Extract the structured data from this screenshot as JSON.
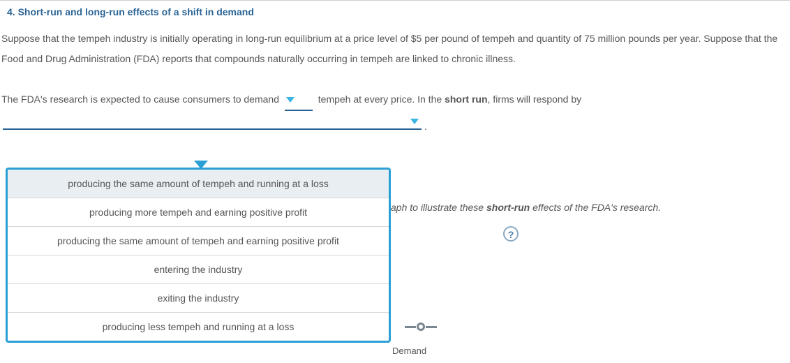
{
  "colors": {
    "heading": "#2a6496",
    "body_text": "#555555",
    "dropdown_border": "#2a9fd6",
    "dropdown_highlight_bg": "#e9eef2",
    "caret": "#3bb3e4",
    "blank_underline": "#2a6496",
    "help_border": "#8aa9c2",
    "help_text": "#4b7aa6",
    "legend_gray": "#7a8791",
    "rule": "#d0d0d0"
  },
  "heading": "4. Short-run and long-run effects of a shift in demand",
  "paragraph1": "Suppose that the tempeh industry is initially operating in long-run equilibrium at a price level of $5 per pound of tempeh and quantity of 75 million pounds per year. Suppose that the Food and Drug Administration (FDA) reports that compounds naturally occurring in tempeh are linked to chronic illness.",
  "paragraph2": {
    "pre_blank1": "The FDA's research is expected to cause consumers to demand ",
    "post_blank1": " tempeh at every price. In the ",
    "bold1": "short run",
    "post_bold1": ", firms will respond by"
  },
  "dropdown": {
    "highlighted_index": 0,
    "options": [
      "producing the same amount of tempeh and running at a loss",
      "producing more tempeh and earning positive profit",
      "producing the same amount of tempeh and earning positive profit",
      "entering the industry",
      "exiting the industry",
      "producing less tempeh and running at a loss"
    ]
  },
  "instruction_partial": {
    "trail": "aph to illustrate these ",
    "bold": "short-run",
    "post": " effects of the FDA's research."
  },
  "help_icon_label": "?",
  "legend": {
    "label": "Demand"
  },
  "period": "."
}
